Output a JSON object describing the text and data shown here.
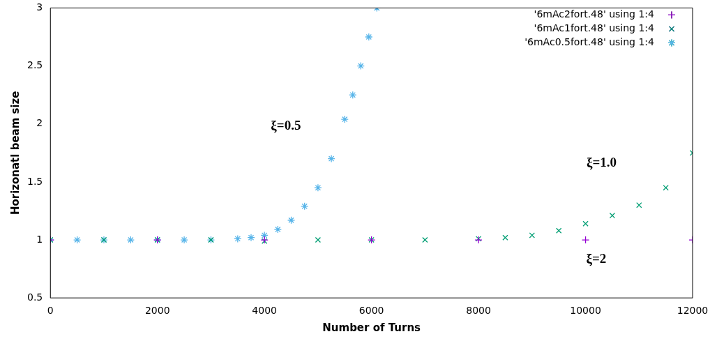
{
  "chart_data": {
    "type": "scatter",
    "xlabel": "Number of Turns",
    "ylabel": "Horizonatl beam size",
    "xlim": [
      0,
      12000
    ],
    "xticks": [
      0,
      2000,
      4000,
      6000,
      8000,
      10000,
      12000
    ],
    "ylim": [
      0.5,
      3
    ],
    "yticks": [
      0.5,
      1,
      1.5,
      2,
      2.5,
      3
    ],
    "grid": false,
    "legend": "top right",
    "marker": "cross",
    "series": [
      {
        "name": "'6mAc2fort.48' using 1:4",
        "color": "#9400d3",
        "x": [
          0,
          2000,
          4000,
          6000,
          8000,
          10000,
          12000
        ],
        "values": [
          1,
          1,
          1,
          1,
          1,
          1,
          1
        ]
      },
      {
        "name": "'6mAc1fort.48' using 1:4",
        "color": "#009e73",
        "x": [
          0,
          1000,
          2000,
          3000,
          4000,
          5000,
          6000,
          7000,
          8000,
          8500,
          9000,
          9500,
          10000,
          10500,
          11000,
          11500,
          12000
        ],
        "values": [
          1,
          1,
          1,
          1,
          0.99,
          1,
          1,
          1,
          1.01,
          1.02,
          1.04,
          1.08,
          1.14,
          1.21,
          1.3,
          1.45,
          1.75
        ]
      },
      {
        "name": "'6mAc0.5fort.48' using 1:4",
        "color": "#56b4e9",
        "x": [
          0,
          500,
          1000,
          1500,
          2000,
          2500,
          3000,
          3500,
          3750,
          4000,
          4250,
          4500,
          4750,
          5000,
          5250,
          5500,
          5650,
          5800,
          5950,
          6100
        ],
        "values": [
          1,
          1,
          1,
          1,
          1,
          1,
          1,
          1.01,
          1.02,
          1.04,
          1.09,
          1.17,
          1.29,
          1.45,
          1.7,
          2.04,
          2.25,
          2.5,
          2.75,
          3.0
        ]
      }
    ],
    "annotations": [
      "ξ=0.5",
      "ξ=1.0",
      "ξ=2"
    ]
  }
}
